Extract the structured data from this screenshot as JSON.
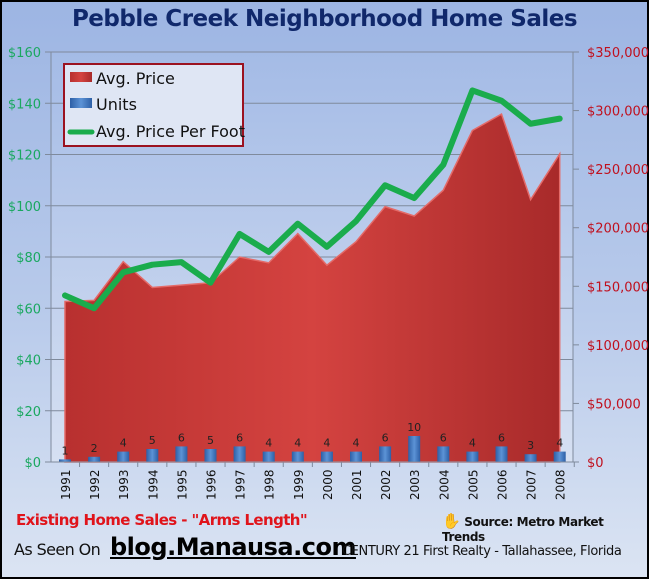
{
  "header": {
    "title": "Pebble Creek Neighborhood Home Sales"
  },
  "legend": {
    "items": [
      {
        "label": "Avg. Price",
        "color": "#c8393a"
      },
      {
        "label": "Units",
        "color": "#3f77bd"
      },
      {
        "label": "Avg. Price Per Foot",
        "color": "#1aac4c"
      }
    ]
  },
  "axes": {
    "left_ticks": [
      "$0",
      "$20",
      "$40",
      "$60",
      "$80",
      "$100",
      "$120",
      "$140",
      "$160"
    ],
    "right_ticks": [
      "$0",
      "$50,000",
      "$100,000",
      "$150,000",
      "$200,000",
      "$250,000",
      "$300,000",
      "$350,000"
    ],
    "left_color": "#1aa860",
    "right_color": "#c0101e"
  },
  "footer": {
    "note": "Existing Home Sales - \"Arms Length\"",
    "source": "Source: Metro Market Trends",
    "hand_icon": "✋",
    "as_seen_on": "As Seen On",
    "blog": "blog.Manausa.com",
    "company": "CENTURY 21 First Realty - Tallahassee, Florida"
  },
  "chart_data": {
    "type": "area",
    "title": "Pebble Creek Neighborhood Home Sales",
    "categories": [
      "1991",
      "1992",
      "1993",
      "1994",
      "1995",
      "1996",
      "1997",
      "1998",
      "1999",
      "2000",
      "2001",
      "2002",
      "2003",
      "2004",
      "2005",
      "2006",
      "2007",
      "2008"
    ],
    "series": [
      {
        "name": "Avg. Price",
        "type": "area",
        "axis": "right",
        "values": [
          137000,
          138000,
          171000,
          149000,
          151000,
          153000,
          175000,
          170000,
          195000,
          168000,
          188000,
          218000,
          210000,
          232000,
          283000,
          297000,
          224000,
          263000
        ]
      },
      {
        "name": "Units",
        "type": "bar",
        "axis": "units",
        "values": [
          1,
          2,
          4,
          5,
          6,
          5,
          6,
          4,
          4,
          4,
          4,
          6,
          10,
          6,
          4,
          6,
          3,
          4
        ]
      },
      {
        "name": "Avg. Price Per Foot",
        "type": "line",
        "axis": "left",
        "values": [
          65,
          60,
          74,
          77,
          78,
          70,
          89,
          82,
          93,
          84,
          94,
          108,
          103,
          116,
          145,
          141,
          132,
          134
        ]
      }
    ],
    "left_axis": {
      "label": "",
      "range": [
        0,
        160
      ],
      "ticks": [
        0,
        20,
        40,
        60,
        80,
        100,
        120,
        140,
        160
      ]
    },
    "right_axis": {
      "label": "",
      "range": [
        0,
        350000
      ],
      "ticks": [
        0,
        50000,
        100000,
        150000,
        200000,
        250000,
        300000,
        350000
      ]
    },
    "grid": true,
    "legend_position": "top-left"
  }
}
